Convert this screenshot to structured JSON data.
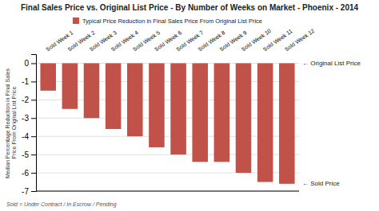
{
  "chart_data": {
    "type": "bar",
    "title": "Final Sales Price vs. Original List Price - By Number of Weeks on Market - Phoenix - 2014",
    "ylabel": "Median Percentage Reduction in Final Sales Price From Original List Price",
    "footnote": "Sold = Under Contract / In Escrow / Pending",
    "categories": [
      "Sold Week 1",
      "Sold Week 2",
      "Sold Week 3",
      "Sold Week 4",
      "Sold Week 5",
      "Sold Week 6",
      "Sold Week 7",
      "Sold Week 8",
      "Sold Week 9",
      "Sold Week 10",
      "Sold Week 11",
      "Sold Week 12"
    ],
    "series": [
      {
        "name": "Typical Price Reduction in Final Sales Price From Original List Price",
        "color": "#c0524a",
        "values": [
          -1.5,
          -2.5,
          -3.0,
          -3.6,
          -4.0,
          -4.6,
          -5.0,
          -5.4,
          -5.4,
          -6.0,
          -6.5,
          -6.6
        ]
      }
    ],
    "annotations": [
      {
        "text": "← Original List Price",
        "y": 0
      },
      {
        "text": "← Sold Price",
        "y": -6.6
      }
    ],
    "ylim": [
      -7,
      0.5
    ],
    "yticks": [
      0,
      -1,
      -2,
      -3,
      -4,
      -5,
      -6,
      -7
    ],
    "grid": true,
    "legend": "top"
  }
}
